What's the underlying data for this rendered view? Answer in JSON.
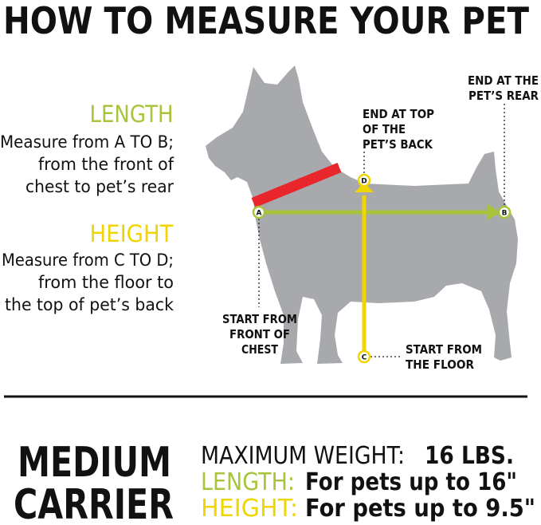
{
  "title": "HOW TO MEASURE YOUR PET",
  "colors": {
    "length": "#a7c43b",
    "height": "#f0d500",
    "collar": "#e8262b",
    "dog": "#a7a9ac",
    "text": "#111111"
  },
  "length": {
    "heading": "LENGTH",
    "lines": [
      "Measure from A TO B;",
      "from the front of",
      "chest to pet’s rear"
    ]
  },
  "height": {
    "heading": "HEIGHT",
    "lines": [
      "Measure from C TO D;",
      "from the floor to",
      "the top of pet’s back"
    ]
  },
  "points": {
    "a": "A",
    "b": "B",
    "c": "C",
    "d": "D"
  },
  "callouts": {
    "rear": [
      "END AT THE",
      "PET’S REAR"
    ],
    "back": [
      "END AT TOP",
      "OF THE",
      "PET’S BACK"
    ],
    "chest": [
      "START FROM",
      "FRONT OF",
      "CHEST"
    ],
    "floor": [
      "START FROM",
      "THE FLOOR"
    ]
  },
  "product": {
    "line1": "MEDIUM",
    "line2": "CARRIER"
  },
  "specs": {
    "weight_label": "MAXIMUM WEIGHT:",
    "weight_value": "16 LBS.",
    "length_label": "LENGTH:",
    "length_value": "For pets up to 16\"",
    "height_label": "HEIGHT:",
    "height_value": "For pets up to 9.5\""
  }
}
